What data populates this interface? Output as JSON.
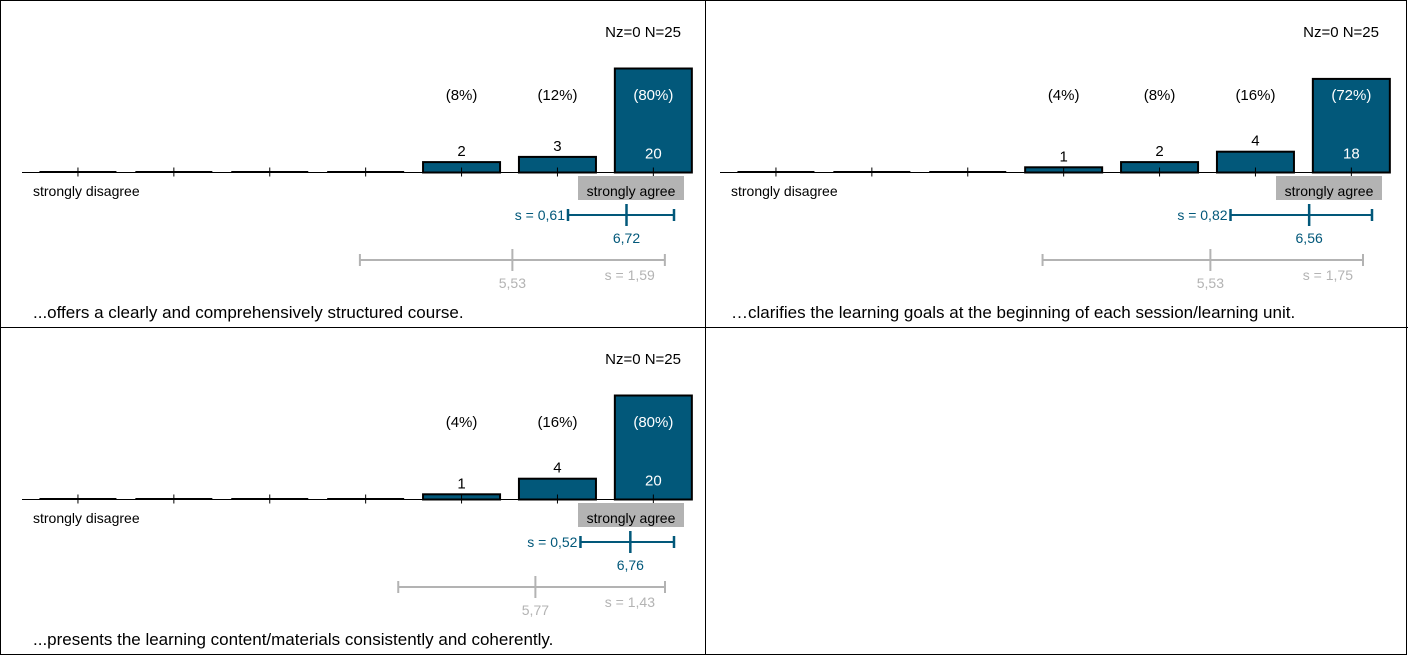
{
  "chart_data": [
    {
      "type": "bar",
      "title": "...offers a clearly and comprehensively structured course.",
      "categories": [
        "1",
        "2",
        "3",
        "4",
        "5",
        "6",
        "7"
      ],
      "values": [
        0,
        0,
        0,
        0,
        2,
        3,
        20
      ],
      "value_labels": [
        "",
        "",
        "",
        "",
        "2",
        "3",
        "20"
      ],
      "percent_labels": [
        "",
        "",
        "",
        "",
        "(8%)",
        "(12%)",
        "(80%)"
      ],
      "scale_left_label": "strongly disagree",
      "scale_right_label": "strongly agree",
      "counts_label": "Nz=0  N=25",
      "n": 25,
      "mean": 6.72,
      "mean_label": "6,72",
      "sd": 0.61,
      "sd_label": "s = 0,61",
      "comparison": {
        "mean": 5.53,
        "mean_label": "5,53",
        "sd": 1.59,
        "sd_label": "s = 1,59"
      },
      "colors": {
        "bar": "#02587a",
        "comparison": "#b3b3b3",
        "agree_box": "#b3b3b3"
      }
    },
    {
      "type": "bar",
      "title": "…clarifies the learning goals at the beginning of each session/learning unit.",
      "categories": [
        "1",
        "2",
        "3",
        "4",
        "5",
        "6",
        "7"
      ],
      "values": [
        0,
        0,
        0,
        1,
        2,
        4,
        18
      ],
      "value_labels": [
        "",
        "",
        "",
        "1",
        "2",
        "4",
        "18"
      ],
      "percent_labels": [
        "",
        "",
        "",
        "(4%)",
        "(8%)",
        "(16%)",
        "(72%)"
      ],
      "scale_left_label": "strongly disagree",
      "scale_right_label": "strongly agree",
      "counts_label": "Nz=0  N=25",
      "n": 25,
      "mean": 6.56,
      "mean_label": "6,56",
      "sd": 0.82,
      "sd_label": "s = 0,82",
      "comparison": {
        "mean": 5.53,
        "mean_label": "5,53",
        "sd": 1.75,
        "sd_label": "s = 1,75"
      },
      "colors": {
        "bar": "#02587a",
        "comparison": "#b3b3b3",
        "agree_box": "#b3b3b3"
      }
    },
    {
      "type": "bar",
      "title": "...presents the learning content/materials consistently and coherently.",
      "categories": [
        "1",
        "2",
        "3",
        "4",
        "5",
        "6",
        "7"
      ],
      "values": [
        0,
        0,
        0,
        0,
        1,
        4,
        20
      ],
      "value_labels": [
        "",
        "",
        "",
        "",
        "1",
        "4",
        "20"
      ],
      "percent_labels": [
        "",
        "",
        "",
        "",
        "(4%)",
        "(16%)",
        "(80%)"
      ],
      "scale_left_label": "strongly disagree",
      "scale_right_label": "strongly agree",
      "counts_label": "Nz=0  N=25",
      "n": 25,
      "mean": 6.76,
      "mean_label": "6,76",
      "sd": 0.52,
      "sd_label": "s = 0,52",
      "comparison": {
        "mean": 5.77,
        "mean_label": "5,77",
        "sd": 1.43,
        "sd_label": "s = 1,43"
      },
      "colors": {
        "bar": "#02587a",
        "comparison": "#b3b3b3",
        "agree_box": "#b3b3b3"
      }
    }
  ]
}
